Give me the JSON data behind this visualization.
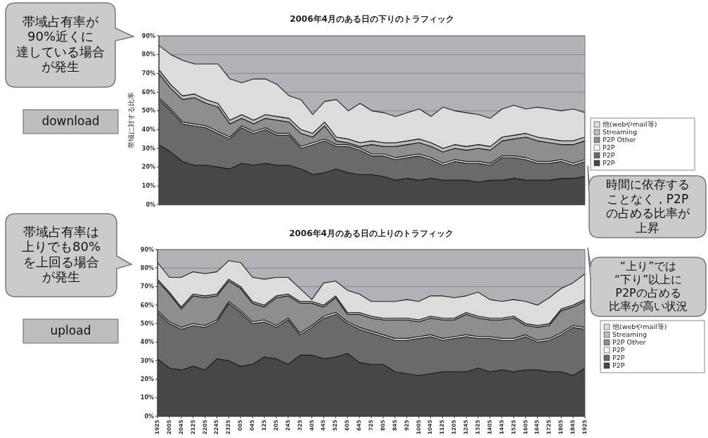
{
  "chart_data": [
    {
      "type": "area",
      "title": "2006年4月のある日の下りのトラフィック",
      "ylabel": "帯域に対する比率",
      "stacked": true,
      "grid": "y",
      "legend": "right",
      "categories": [
        null,
        null,
        null,
        null,
        null,
        null,
        null,
        null,
        null,
        null,
        null,
        null,
        null,
        null,
        null,
        null,
        null,
        null,
        null,
        null,
        null,
        null,
        null,
        null,
        null,
        null,
        null,
        null,
        null,
        null,
        null,
        null,
        null,
        null,
        null,
        null,
        null
      ],
      "ylim": [
        0,
        90
      ],
      "yticks": [
        {
          "value": 0,
          "label": "0%"
        },
        {
          "value": 10,
          "label": "10%"
        },
        {
          "value": 20,
          "label": "20%"
        },
        {
          "value": 30,
          "label": "30%"
        },
        {
          "value": 40,
          "label": "40%"
        },
        {
          "value": 50,
          "label": "50%"
        },
        {
          "value": 60,
          "label": "60%"
        },
        {
          "value": 70,
          "label": "70%"
        },
        {
          "value": 80,
          "label": "80%"
        },
        {
          "value": 90,
          "label": "90%"
        }
      ],
      "series": [
        {
          "name": "P2P",
          "color": "#474747",
          "values": [
            32,
            28,
            23,
            21,
            21,
            20,
            19,
            22,
            21,
            22,
            21,
            21,
            19,
            16,
            17,
            19,
            17,
            16,
            16,
            15,
            13,
            14,
            13,
            14,
            13,
            13,
            13,
            12,
            13,
            13,
            14,
            13,
            13,
            13,
            14,
            14,
            15
          ]
        },
        {
          "name": "P2P",
          "color": "#6a6a6a",
          "values": [
            24,
            22,
            20,
            21,
            20,
            18,
            16,
            19,
            17,
            18,
            16,
            16,
            11,
            16,
            17,
            12,
            14,
            13,
            10,
            11,
            11,
            11,
            13,
            10,
            8,
            10,
            9,
            10,
            8,
            12,
            11,
            11,
            9,
            9,
            9,
            7,
            8
          ]
        },
        {
          "name": "P2P",
          "color": "#f4f4f4",
          "values": [
            1,
            1,
            1,
            1,
            1,
            1,
            1,
            1,
            1,
            1,
            1,
            1,
            1,
            1,
            1,
            1,
            1,
            1,
            1,
            1,
            1,
            1,
            1,
            1,
            1,
            1,
            1,
            1,
            1,
            1,
            1,
            1,
            1,
            1,
            1,
            1,
            1
          ]
        },
        {
          "name": "P2P Other",
          "color": "#8e8e8e",
          "values": [
            13,
            11,
            12,
            14,
            12,
            13,
            7,
            4,
            4,
            5,
            7,
            6,
            7,
            3,
            7,
            2,
            1,
            1,
            5,
            4,
            6,
            6,
            6,
            6,
            6,
            6,
            6,
            7,
            7,
            8,
            9,
            11,
            11,
            10,
            8,
            10,
            10
          ]
        },
        {
          "name": "Streaming",
          "color": "#bcbcbc",
          "values": [
            2,
            2,
            2,
            2,
            2,
            2,
            2,
            2,
            2,
            2,
            2,
            2,
            2,
            2,
            2,
            2,
            2,
            2,
            2,
            2,
            2,
            2,
            2,
            2,
            2,
            2,
            2,
            2,
            2,
            2,
            2,
            2,
            2,
            2,
            2,
            2,
            2
          ]
        },
        {
          "name": "他(webやmail等)",
          "color": "#dcdcdc",
          "values": [
            13,
            16,
            19,
            16,
            19,
            21,
            22,
            17,
            22,
            19,
            17,
            12,
            16,
            10,
            11,
            20,
            15,
            21,
            16,
            16,
            14,
            15,
            16,
            14,
            22,
            18,
            18,
            16,
            15,
            15,
            16,
            13,
            16,
            16,
            16,
            17,
            13
          ]
        }
      ],
      "annotations": [
        "帯域占有率が90%近くに達している場合が発生",
        "download",
        "時間に依存することなく，P2Pの占める比率が上昇"
      ]
    },
    {
      "type": "area",
      "title": "2006年4月のある日の上りのトラフィック",
      "stacked": true,
      "grid": "y",
      "legend": "right",
      "categories": [
        "1925",
        "2005",
        "2045",
        "2125",
        "2205",
        "2245",
        "2325",
        "005",
        "045",
        "125",
        "205",
        "245",
        "325",
        "405",
        "445",
        "525",
        "605",
        "645",
        "725",
        "805",
        "845",
        "925",
        "1005",
        "1045",
        "1125",
        "1205",
        "1245",
        "1325",
        "1405",
        "1445",
        "1525",
        "1605",
        "1645",
        "1725",
        "1805",
        "1845",
        "1925"
      ],
      "ylim": [
        0,
        90
      ],
      "yticks": [
        {
          "value": 0,
          "label": "0%"
        },
        {
          "value": 10,
          "label": "10%"
        },
        {
          "value": 20,
          "label": "20%"
        },
        {
          "value": 30,
          "label": "30%"
        },
        {
          "value": 40,
          "label": "40%"
        },
        {
          "value": 50,
          "label": "50%"
        },
        {
          "value": 60,
          "label": "60%"
        },
        {
          "value": 70,
          "label": "70%"
        },
        {
          "value": 80,
          "label": "80%"
        },
        {
          "value": 90,
          "label": "90%"
        }
      ],
      "series": [
        {
          "name": "P2P",
          "color": "#474747",
          "values": [
            31,
            26,
            25,
            27,
            25,
            31,
            30,
            27,
            28,
            32,
            31,
            28,
            33,
            33,
            31,
            32,
            34,
            29,
            28,
            28,
            24,
            23,
            22,
            23,
            24,
            24,
            24,
            26,
            24,
            25,
            24,
            25,
            25,
            24,
            24,
            22,
            26
          ]
        },
        {
          "name": "P2P",
          "color": "#6a6a6a",
          "values": [
            25,
            24,
            22,
            22,
            23,
            20,
            31,
            29,
            22,
            19,
            17,
            24,
            11,
            15,
            22,
            23,
            16,
            18,
            17,
            15,
            17,
            18,
            20,
            20,
            17,
            18,
            19,
            16,
            18,
            16,
            17,
            18,
            15,
            17,
            20,
            26,
            21
          ]
        },
        {
          "name": "P2P",
          "color": "#f4f4f4",
          "values": [
            1,
            1,
            1,
            1,
            1,
            1,
            1,
            1,
            1,
            1,
            1,
            1,
            1,
            1,
            1,
            1,
            1,
            1,
            1,
            1,
            1,
            1,
            1,
            1,
            1,
            1,
            1,
            1,
            1,
            1,
            1,
            1,
            1,
            1,
            1,
            1,
            1
          ]
        },
        {
          "name": "P2P Other",
          "color": "#8e8e8e",
          "values": [
            16,
            15,
            10,
            15,
            15,
            13,
            11,
            12,
            10,
            7,
            15,
            12,
            16,
            12,
            5,
            8,
            4,
            7,
            7,
            8,
            10,
            10,
            8,
            9,
            10,
            9,
            11,
            10,
            9,
            10,
            11,
            5,
            7,
            7,
            12,
            10,
            14
          ]
        },
        {
          "name": "Streaming",
          "color": "#bcbcbc",
          "values": [
            1,
            1,
            1,
            1,
            1,
            1,
            1,
            1,
            1,
            1,
            1,
            1,
            1,
            1,
            1,
            1,
            1,
            1,
            1,
            1,
            1,
            1,
            1,
            1,
            1,
            1,
            1,
            1,
            1,
            1,
            1,
            1,
            1,
            1,
            1,
            1,
            1
          ]
        },
        {
          "name": "他(webやmail等)",
          "color": "#dcdcdc",
          "values": [
            9,
            8,
            16,
            12,
            12,
            12,
            10,
            13,
            13,
            14,
            10,
            9,
            7,
            1,
            12,
            8,
            12,
            10,
            8,
            9,
            9,
            10,
            10,
            11,
            12,
            11,
            9,
            13,
            10,
            9,
            9,
            12,
            11,
            14,
            11,
            12,
            14
          ]
        }
      ],
      "annotations": [
        "帯域占有率は上りでも80%を上回る場合が発生",
        "upload",
        "“上り”では“下り”以上にP2Pの占める比率が高い状況"
      ]
    }
  ]
}
